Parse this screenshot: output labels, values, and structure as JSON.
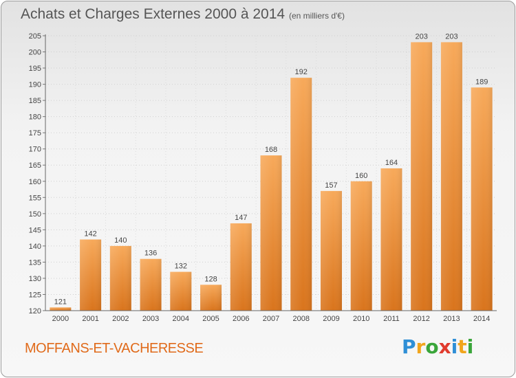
{
  "header": {
    "title": "Achats et Charges Externes 2000 à 2014",
    "subtitle": "(en milliers d'€)"
  },
  "footer": {
    "commune": "MOFFANS-ET-VACHERESSE",
    "logo": {
      "text": "Proxiti",
      "letters": [
        {
          "char": "P",
          "color": "#2f8fd6"
        },
        {
          "char": "r",
          "color": "#f1a51c"
        },
        {
          "char": "o",
          "color": "#3aa53a"
        },
        {
          "char": "x",
          "color": "#e03b2e"
        },
        {
          "char": "i",
          "color": "#2f8fd6"
        },
        {
          "char": "t",
          "color": "#f1a51c"
        },
        {
          "char": "i",
          "color": "#3aa53a"
        }
      ]
    }
  },
  "chart_data": {
    "type": "bar",
    "title": "Achats et Charges Externes 2000 à 2014",
    "subtitle": "(en milliers d'€)",
    "categories": [
      "2000",
      "2001",
      "2002",
      "2003",
      "2004",
      "2005",
      "2006",
      "2007",
      "2008",
      "2009",
      "2010",
      "2011",
      "2012",
      "2013",
      "2014"
    ],
    "values": [
      121,
      142,
      140,
      136,
      132,
      128,
      147,
      168,
      192,
      157,
      160,
      164,
      203,
      203,
      189
    ],
    "ylim": [
      120,
      205
    ],
    "yticks": [
      120,
      125,
      130,
      135,
      140,
      145,
      150,
      155,
      160,
      165,
      170,
      175,
      180,
      185,
      190,
      195,
      200,
      205
    ],
    "grid": true,
    "bar_color": "#f0a050",
    "bar_color_dark": "#e07a20"
  }
}
